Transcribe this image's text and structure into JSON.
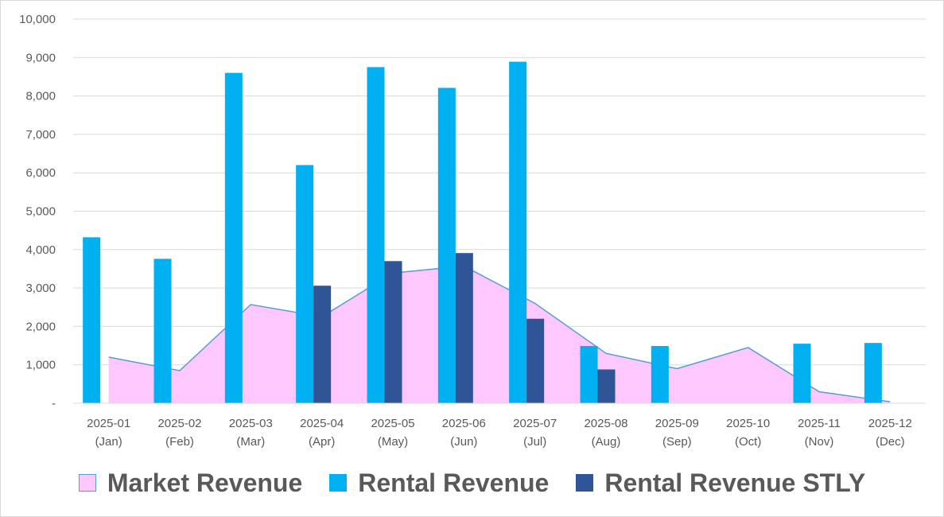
{
  "chart_data": {
    "type": "bar",
    "title": "",
    "xlabel": "",
    "ylabel": "",
    "ylim": [
      0,
      10000
    ],
    "yticks": [
      {
        "value": 0,
        "label": "-"
      },
      {
        "value": 1000,
        "label": "1,000"
      },
      {
        "value": 2000,
        "label": "2,000"
      },
      {
        "value": 3000,
        "label": "3,000"
      },
      {
        "value": 4000,
        "label": "4,000"
      },
      {
        "value": 5000,
        "label": "5,000"
      },
      {
        "value": 6000,
        "label": "6,000"
      },
      {
        "value": 7000,
        "label": "7,000"
      },
      {
        "value": 8000,
        "label": "8,000"
      },
      {
        "value": 9000,
        "label": "9,000"
      },
      {
        "value": 10000,
        "label": "10,000"
      }
    ],
    "categories": [
      {
        "line1": "2025-01",
        "line2": "(Jan)"
      },
      {
        "line1": "2025-02",
        "line2": "(Feb)"
      },
      {
        "line1": "2025-03",
        "line2": "(Mar)"
      },
      {
        "line1": "2025-04",
        "line2": "(Apr)"
      },
      {
        "line1": "2025-05",
        "line2": "(May)"
      },
      {
        "line1": "2025-06",
        "line2": "(Jun)"
      },
      {
        "line1": "2025-07",
        "line2": "(Jul)"
      },
      {
        "line1": "2025-08",
        "line2": "(Aug)"
      },
      {
        "line1": "2025-09",
        "line2": "(Sep)"
      },
      {
        "line1": "2025-10",
        "line2": "(Oct)"
      },
      {
        "line1": "2025-11",
        "line2": "(Nov)"
      },
      {
        "line1": "2025-12",
        "line2": "(Dec)"
      }
    ],
    "series": [
      {
        "name": "Market Revenue",
        "type": "area",
        "color": "#FFC7FF",
        "line_color": "#5B9BD5",
        "values": [
          1200,
          850,
          2570,
          2250,
          3390,
          3570,
          2600,
          1300,
          900,
          1450,
          300,
          40
        ]
      },
      {
        "name": "Rental Revenue",
        "type": "bar",
        "color": "#00B0F0",
        "values": [
          4320,
          3760,
          8600,
          6200,
          8750,
          8210,
          8890,
          1490,
          1490,
          null,
          1550,
          1570
        ]
      },
      {
        "name": "Rental Revenue STLY",
        "type": "bar",
        "color": "#2F5597",
        "values": [
          null,
          null,
          null,
          3060,
          3700,
          3910,
          2200,
          880,
          null,
          null,
          null,
          null
        ]
      }
    ],
    "legend_position": "bottom",
    "grid": true
  },
  "legend": [
    {
      "label": "Market Revenue",
      "color": "#FFC7FF",
      "border": "#5B9BD5"
    },
    {
      "label": "Rental Revenue",
      "color": "#00B0F0",
      "border": "#00B0F0"
    },
    {
      "label": "Rental Revenue STLY",
      "color": "#2F5597",
      "border": "#2F5597"
    }
  ]
}
